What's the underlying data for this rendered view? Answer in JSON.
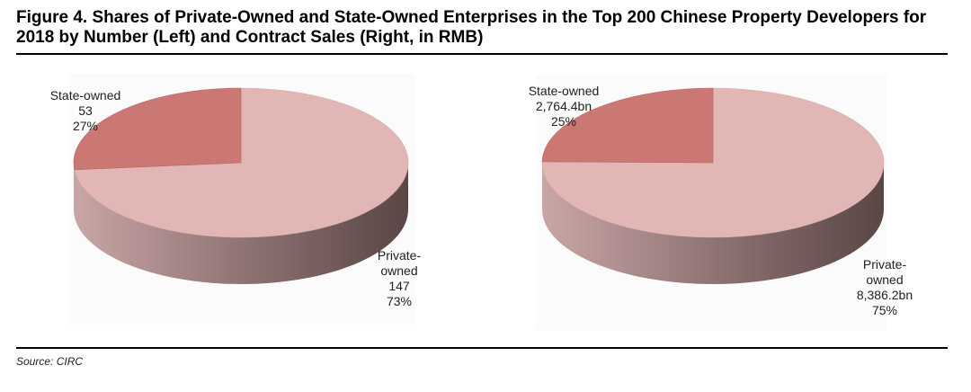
{
  "title": "Figure 4. Shares of Private-Owned and State-Owned Enterprises in the Top 200 Chinese Property Developers for 2018 by Number (Left) and Contract Sales (Right, in RMB)",
  "source": "Source: CIRC",
  "colors": {
    "state": "#cb7774",
    "private": "#e3b6b6",
    "side_dark": "#5a4645",
    "side_light": "#c9a6a6"
  },
  "chart_data": [
    {
      "type": "pie",
      "title": "By Number",
      "slices": [
        {
          "name": "State-owned",
          "value": 53,
          "percent": 27,
          "value_label": "53",
          "percent_label": "27%"
        },
        {
          "name": "Private-owned",
          "value": 147,
          "percent": 73,
          "value_label": "147",
          "percent_label": "73%"
        }
      ]
    },
    {
      "type": "pie",
      "title": "By Contract Sales (RMB)",
      "slices": [
        {
          "name": "State-owned",
          "value": 2764.4,
          "percent": 25,
          "value_label": "2,764.4bn",
          "percent_label": "25%"
        },
        {
          "name": "Private-owned",
          "value": 8386.2,
          "percent": 75,
          "value_label": "8,386.2bn",
          "percent_label": "75%"
        }
      ]
    }
  ],
  "labels": {
    "left_state_name": "State-owned",
    "left_private_line1": "Private-",
    "left_private_line2": "owned",
    "right_state_name": "State-owned",
    "right_private_line1": "Private-",
    "right_private_line2": "owned"
  }
}
